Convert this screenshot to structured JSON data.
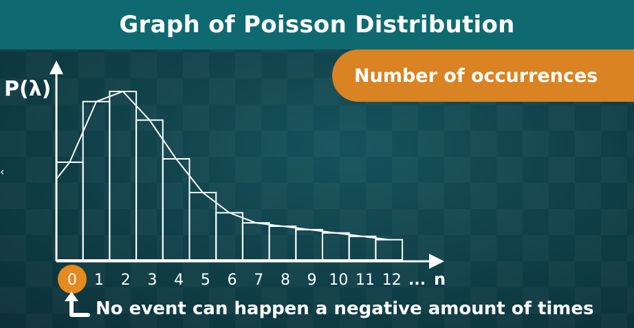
{
  "title": "Graph of Poisson Distribution",
  "banner": "Number of occurrences",
  "y_axis_label": "P(λ)",
  "x_axis_label": "n",
  "x_axis_ellipsis": "...",
  "footnote": "No event can happen a negative amount of times",
  "colors": {
    "title_bar": "#0e6a70",
    "banner": "#d98322",
    "highlight_zero": "#e58a1f",
    "lines": "#ffffff"
  },
  "chart_data": {
    "type": "bar",
    "categories": [
      "0",
      "1",
      "2",
      "3",
      "4",
      "5",
      "6",
      "7",
      "8",
      "9",
      "10",
      "11",
      "12"
    ],
    "values": [
      0.58,
      0.94,
      1.0,
      0.83,
      0.6,
      0.4,
      0.28,
      0.22,
      0.2,
      0.18,
      0.16,
      0.14,
      0.12
    ],
    "overlay": "curve",
    "highlighted_category": "0",
    "ylim": [
      0,
      1.05
    ]
  }
}
